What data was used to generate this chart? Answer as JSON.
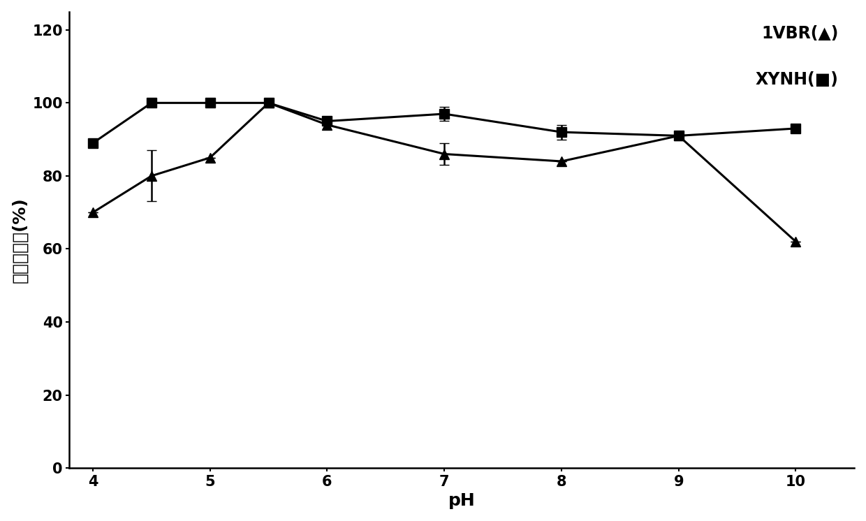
{
  "x": [
    4,
    4.5,
    5,
    5.5,
    6,
    7,
    8,
    9,
    10
  ],
  "vbr_y": [
    70,
    80,
    85,
    100,
    94,
    86,
    84,
    91,
    62
  ],
  "vbr_yerr": [
    0,
    7,
    0,
    0,
    0,
    3,
    0,
    0,
    0
  ],
  "xynh_y": [
    89,
    100,
    100,
    100,
    95,
    97,
    92,
    91,
    93
  ],
  "xynh_yerr": [
    0,
    0,
    0,
    0,
    0,
    2,
    2,
    0,
    0
  ],
  "xlabel": "pH",
  "ylabel": "相对酶活力(%)",
  "legend_1vbr": "1VBR(▲)",
  "legend_xynh": "XYNH(■)",
  "xlim": [
    3.8,
    10.5
  ],
  "ylim": [
    0,
    125
  ],
  "yticks": [
    0,
    20,
    40,
    60,
    80,
    100,
    120
  ],
  "xticks": [
    4,
    5,
    6,
    7,
    8,
    9,
    10
  ],
  "line_color": "#000000",
  "marker_color": "#000000",
  "bg_color": "#ffffff",
  "label_fontsize": 18,
  "tick_fontsize": 15,
  "legend_fontsize": 17,
  "linewidth": 2.2,
  "markersize": 10
}
